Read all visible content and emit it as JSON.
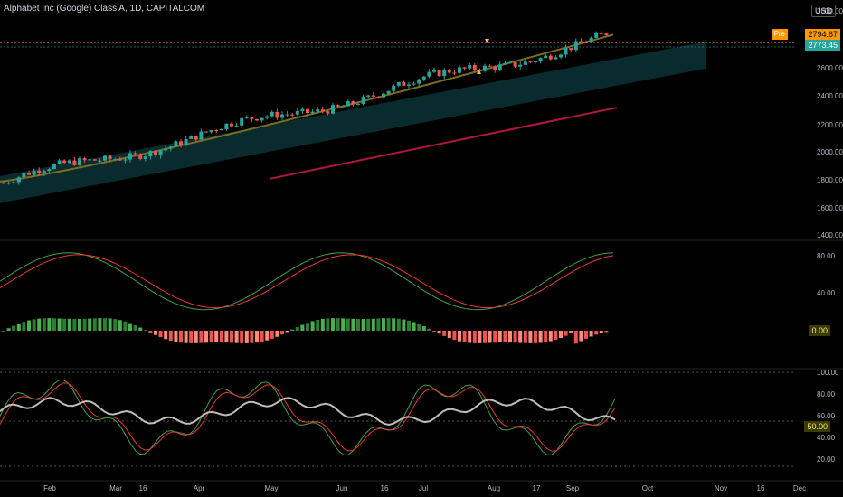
{
  "header": {
    "title": "Alphabet Inc (Google) Class A, 1D, CAPITALCOM",
    "currency": "USD"
  },
  "price_tags": {
    "pre_label": "Pre",
    "pre_value": "2794.67",
    "last_value": "2773.45"
  },
  "price_axis": [
    "3000.00",
    "2600.00",
    "2400.00",
    "2200.00",
    "2000.00",
    "1800.00",
    "1600.00",
    "1400.00"
  ],
  "osc1_axis": [
    "80.00",
    "40.00",
    "0.00"
  ],
  "osc2_axis": [
    "100.00",
    "80.00",
    "60.00",
    "50.00",
    "40.00",
    "20.00"
  ],
  "time_axis": [
    "Feb",
    "Mar",
    "16",
    "Apr",
    "May",
    "Jun",
    "16",
    "Jul",
    "Aug",
    "17",
    "Sep",
    "Oct",
    "Nov",
    "16",
    "Dec"
  ],
  "colors": {
    "up": "#26a69a",
    "down": "#ef5350",
    "ma_olive": "#7a6e1e",
    "ma_red": "#b0163c",
    "cloud": "#0e3a3c"
  },
  "chart_data": {
    "type": "candlestick",
    "series_price_approx": [
      {
        "x": "Jan",
        "y": 1720
      },
      {
        "x": "Feb",
        "y": 1900
      },
      {
        "x": "Mar",
        "y": 2050
      },
      {
        "x": "Apr",
        "y": 2280
      },
      {
        "x": "May",
        "y": 2300
      },
      {
        "x": "Jun",
        "y": 2430
      },
      {
        "x": "Jul",
        "y": 2500
      },
      {
        "x": "Aug",
        "y": 2720
      },
      {
        "x": "Sep",
        "y": 2880
      },
      {
        "x": "Sep-end",
        "y": 2773.45
      }
    ],
    "ylim": [
      1400,
      3000
    ]
  }
}
